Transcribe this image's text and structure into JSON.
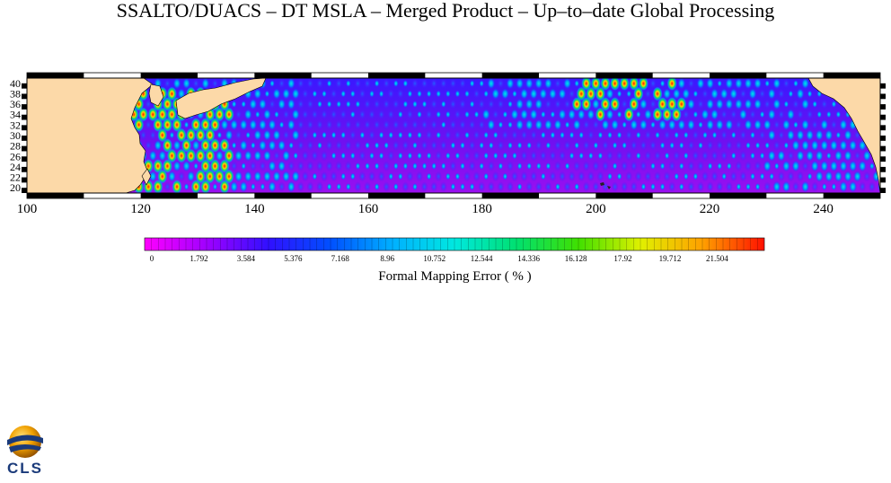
{
  "title": "SSALTO/DUACS – DT MSLA – Merged Product – Up–to–date Global Processing",
  "map": {
    "lon_range": [
      100,
      250
    ],
    "lat_range": [
      19,
      41
    ],
    "lon_ticks": [
      "100",
      "120",
      "140",
      "160",
      "180",
      "200",
      "220",
      "240"
    ],
    "lat_ticks": [
      "40",
      "38",
      "36",
      "34",
      "32",
      "30",
      "28",
      "26",
      "24",
      "22",
      "20"
    ],
    "land_color": "#fcd9a8"
  },
  "colorbar": {
    "label": "Formal Mapping Error ( % )",
    "ticks": [
      "0",
      "1.792",
      "3.584",
      "5.376",
      "7.168",
      "8.96",
      "10.752",
      "12.544",
      "14.336",
      "16.128",
      "17.92",
      "19.712",
      "21.504"
    ],
    "min": 0,
    "max": 23.3
  },
  "logo": {
    "text": "CLS"
  }
}
